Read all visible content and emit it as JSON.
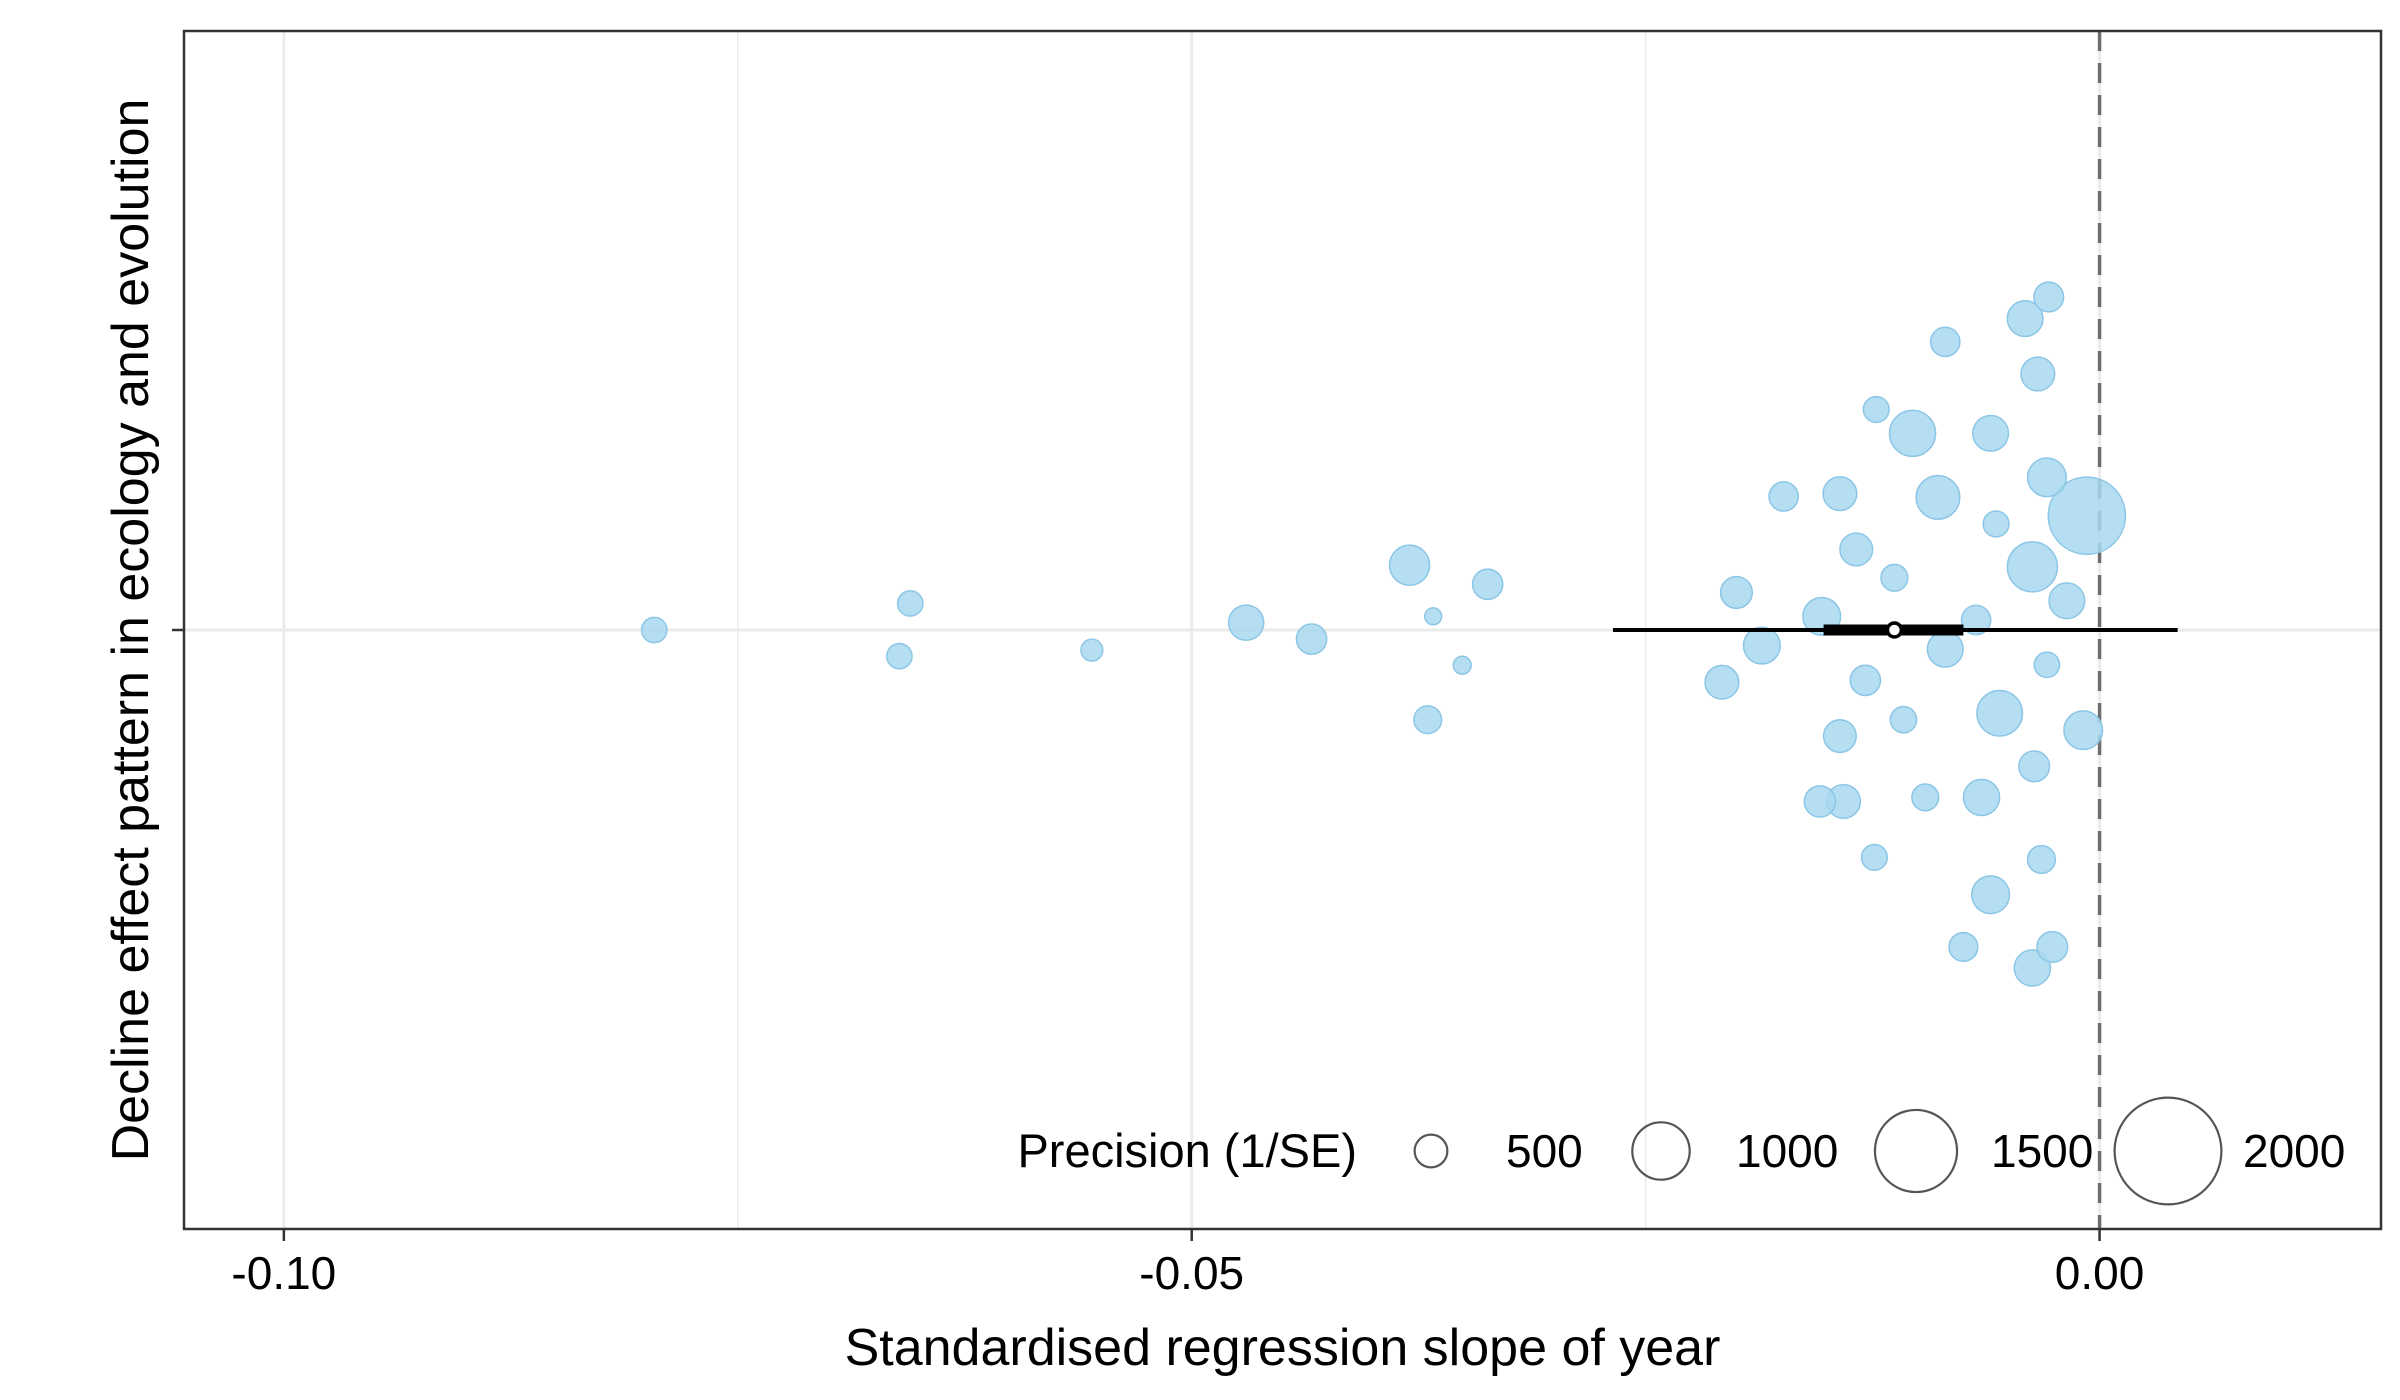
{
  "chart_data": {
    "type": "scatter",
    "xlabel": "Standardised regression slope of year",
    "ylabel": "Decline effect pattern in ecology and evolution",
    "xlim": [
      -0.1055,
      0.0155
    ],
    "x_ticks": [
      {
        "value": -0.1,
        "label": "-0.10"
      },
      {
        "value": -0.05,
        "label": "-0.05"
      },
      {
        "value": 0.0,
        "label": "0.00"
      }
    ],
    "x_minor_gridlines": [
      -0.075,
      -0.025
    ],
    "grid": true,
    "reference_line": {
      "x": 0.0,
      "style": "dashed"
    },
    "estimate": {
      "x": -0.0113,
      "ci_low": -0.0268,
      "ci_high": 0.0043,
      "pi_low": -0.0152,
      "pi_high": -0.0075
    },
    "point_color": "#a8d8f0",
    "point_stroke": "#8cc6e6",
    "legend": {
      "title": "Precision (1/SE)",
      "position": "bottom-right",
      "entries": [
        {
          "label": "500",
          "value": 500
        },
        {
          "label": "1000",
          "value": 1000
        },
        {
          "label": "1500",
          "value": 1500
        },
        {
          "label": "2000",
          "value": 2000
        }
      ]
    },
    "points": [
      {
        "x": -0.0796,
        "y": 0.0,
        "precision": 350
      },
      {
        "x": -0.0655,
        "y": 0.177,
        "precision": 350
      },
      {
        "x": -0.0661,
        "y": -0.174,
        "precision": 350
      },
      {
        "x": -0.0555,
        "y": -0.134,
        "precision": 280
      },
      {
        "x": -0.047,
        "y": 0.049,
        "precision": 550
      },
      {
        "x": -0.0434,
        "y": -0.061,
        "precision": 450
      },
      {
        "x": -0.038,
        "y": 0.432,
        "precision": 650
      },
      {
        "x": -0.0367,
        "y": 0.091,
        "precision": 180
      },
      {
        "x": -0.0337,
        "y": 0.305,
        "precision": 450
      },
      {
        "x": -0.0351,
        "y": -0.235,
        "precision": 200
      },
      {
        "x": -0.037,
        "y": -0.598,
        "precision": 400
      },
      {
        "x": -0.02,
        "y": 0.25,
        "precision": 480
      },
      {
        "x": -0.0186,
        "y": -0.104,
        "precision": 580
      },
      {
        "x": -0.0208,
        "y": -0.348,
        "precision": 520
      },
      {
        "x": -0.0174,
        "y": 0.89,
        "precision": 430
      },
      {
        "x": -0.0153,
        "y": 0.091,
        "precision": 600
      },
      {
        "x": -0.0143,
        "y": 0.909,
        "precision": 520
      },
      {
        "x": -0.0134,
        "y": 0.537,
        "precision": 500
      },
      {
        "x": -0.0129,
        "y": -0.336,
        "precision": 450
      },
      {
        "x": -0.0143,
        "y": -0.707,
        "precision": 500
      },
      {
        "x": -0.0154,
        "y": -1.143,
        "precision": 470
      },
      {
        "x": -0.0141,
        "y": -1.143,
        "precision": 520
      },
      {
        "x": -0.0124,
        "y": -1.516,
        "precision": 360
      },
      {
        "x": -0.0123,
        "y": 1.47,
        "precision": 360
      },
      {
        "x": -0.0113,
        "y": 0.348,
        "precision": 380
      },
      {
        "x": -0.0108,
        "y": -0.598,
        "precision": 370
      },
      {
        "x": -0.0103,
        "y": 1.311,
        "precision": 770
      },
      {
        "x": -0.0096,
        "y": -1.116,
        "precision": 380
      },
      {
        "x": -0.0089,
        "y": 0.884,
        "precision": 720
      },
      {
        "x": -0.0085,
        "y": 1.921,
        "precision": 430
      },
      {
        "x": -0.0085,
        "y": -0.128,
        "precision": 560
      },
      {
        "x": -0.0075,
        "y": -2.113,
        "precision": 420
      },
      {
        "x": -0.0068,
        "y": 0.067,
        "precision": 430
      },
      {
        "x": -0.0065,
        "y": -1.116,
        "precision": 570
      },
      {
        "x": -0.006,
        "y": 1.311,
        "precision": 560
      },
      {
        "x": -0.006,
        "y": -1.765,
        "precision": 600
      },
      {
        "x": -0.0057,
        "y": 0.707,
        "precision": 360
      },
      {
        "x": -0.0055,
        "y": -0.555,
        "precision": 760
      },
      {
        "x": -0.0037,
        "y": 0.421,
        "precision": 850
      },
      {
        "x": -0.0041,
        "y": 2.076,
        "precision": 560
      },
      {
        "x": -0.0037,
        "y": -2.253,
        "precision": 570
      },
      {
        "x": -0.0034,
        "y": 1.707,
        "precision": 520
      },
      {
        "x": -0.0036,
        "y": -0.909,
        "precision": 460
      },
      {
        "x": -0.0032,
        "y": -1.53,
        "precision": 400
      },
      {
        "x": -0.0029,
        "y": 1.018,
        "precision": 620
      },
      {
        "x": -0.0028,
        "y": 2.22,
        "precision": 440
      },
      {
        "x": -0.0029,
        "y": -0.232,
        "precision": 350
      },
      {
        "x": -0.0026,
        "y": -2.113,
        "precision": 460
      },
      {
        "x": -0.0018,
        "y": 0.195,
        "precision": 560
      },
      {
        "x": -0.0009,
        "y": -0.668,
        "precision": 620
      },
      {
        "x": -0.0007,
        "y": 0.762,
        "precision": 1400
      }
    ]
  }
}
